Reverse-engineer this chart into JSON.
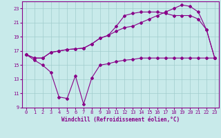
{
  "xlabel": "Windchill (Refroidissement éolien,°C)",
  "background_color": "#c8eaea",
  "grid_color": "#a0cccc",
  "line_color": "#880088",
  "xlim": [
    -0.5,
    23.5
  ],
  "ylim": [
    9,
    24
  ],
  "xticks": [
    0,
    1,
    2,
    3,
    4,
    5,
    6,
    7,
    8,
    9,
    10,
    11,
    12,
    13,
    14,
    15,
    16,
    17,
    18,
    19,
    20,
    21,
    22,
    23
  ],
  "yticks": [
    9,
    11,
    13,
    15,
    17,
    19,
    21,
    23
  ],
  "line1_x": [
    0,
    1,
    2,
    3,
    4,
    5,
    6,
    7,
    8,
    9,
    10,
    11,
    12,
    13,
    14,
    15,
    16,
    17,
    18,
    19,
    20,
    21,
    22,
    23
  ],
  "line1_y": [
    16.5,
    16.0,
    16.0,
    16.8,
    17.0,
    17.2,
    17.3,
    17.4,
    18.0,
    18.8,
    19.2,
    20.5,
    22.0,
    22.3,
    22.5,
    22.5,
    22.5,
    22.3,
    22.0,
    22.0,
    22.0,
    21.5,
    20.0,
    16.0
  ],
  "line2_x": [
    0,
    1,
    2,
    3,
    4,
    5,
    6,
    7,
    8,
    9,
    10,
    11,
    12,
    13,
    14,
    15,
    16,
    17,
    18,
    19,
    20,
    21,
    22,
    23
  ],
  "line2_y": [
    16.5,
    16.0,
    16.0,
    16.8,
    17.0,
    17.2,
    17.3,
    17.4,
    18.0,
    18.8,
    19.2,
    19.8,
    20.3,
    20.5,
    21.0,
    21.5,
    22.0,
    22.5,
    23.0,
    23.5,
    23.3,
    22.5,
    20.0,
    16.0
  ],
  "line3_x": [
    0,
    1,
    2,
    3,
    4,
    5,
    6,
    7,
    8,
    9,
    10,
    11,
    12,
    13,
    14,
    15,
    16,
    17,
    18,
    19,
    20,
    21,
    22,
    23
  ],
  "line3_y": [
    16.5,
    15.7,
    15.0,
    14.0,
    10.5,
    10.3,
    13.5,
    9.5,
    13.2,
    15.0,
    15.2,
    15.5,
    15.7,
    15.8,
    16.0,
    16.0,
    16.0,
    16.0,
    16.0,
    16.0,
    16.0,
    16.0,
    16.0,
    16.0
  ]
}
